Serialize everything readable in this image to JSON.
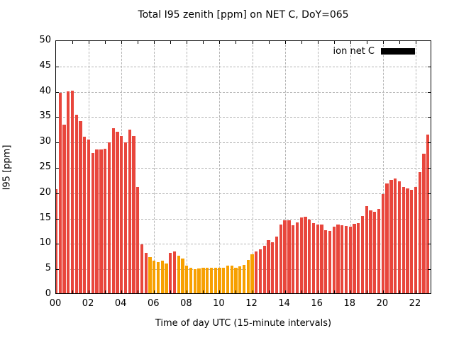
{
  "title": "Total I95 zenith [ppm] on NET C, DoY=065",
  "x_axis": {
    "label": "Time of day UTC (15-minute intervals)",
    "tick_labels": [
      "00",
      "02",
      "04",
      "06",
      "08",
      "10",
      "12",
      "14",
      "16",
      "18",
      "20",
      "22"
    ]
  },
  "y_axis": {
    "label": "I95 [ppm]",
    "tick_labels": [
      "0",
      "5",
      "10",
      "15",
      "20",
      "25",
      "30",
      "35",
      "40",
      "45",
      "50"
    ]
  },
  "legend": {
    "label": "ion net C",
    "swatch_color": "#000000"
  },
  "colors": {
    "red": "#e8463c",
    "orange": "#f7a000",
    "grid": "#b4b4b4",
    "axis": "#000000",
    "background": "#ffffff"
  },
  "chart_data": {
    "type": "bar",
    "title": "Total I95 zenith [ppm] on NET C, DoY=065",
    "xlabel": "Time of day UTC (15-minute intervals)",
    "ylabel": "I95 [ppm]",
    "xlim_hours": [
      0,
      23
    ],
    "ylim": [
      0,
      50
    ],
    "grid": true,
    "legend_position": "top-right-inside",
    "interval_minutes": 15,
    "series_name": "ion net C",
    "times": [
      "00:00",
      "00:15",
      "00:30",
      "00:45",
      "01:00",
      "01:15",
      "01:30",
      "01:45",
      "02:00",
      "02:15",
      "02:30",
      "02:45",
      "03:00",
      "03:15",
      "03:30",
      "03:45",
      "04:00",
      "04:15",
      "04:30",
      "04:45",
      "05:00",
      "05:15",
      "05:30",
      "05:45",
      "06:00",
      "06:15",
      "06:30",
      "06:45",
      "07:00",
      "07:15",
      "07:30",
      "07:45",
      "08:00",
      "08:15",
      "08:30",
      "08:45",
      "09:00",
      "09:15",
      "09:30",
      "09:45",
      "10:00",
      "10:15",
      "10:30",
      "10:45",
      "11:00",
      "11:15",
      "11:30",
      "11:45",
      "12:00",
      "12:15",
      "12:30",
      "12:45",
      "13:00",
      "13:15",
      "13:30",
      "13:45",
      "14:00",
      "14:15",
      "14:30",
      "14:45",
      "15:00",
      "15:15",
      "15:30",
      "15:45",
      "16:00",
      "16:15",
      "16:30",
      "16:45",
      "17:00",
      "17:15",
      "17:30",
      "17:45",
      "18:00",
      "18:15",
      "18:30",
      "18:45",
      "19:00",
      "19:15",
      "19:30",
      "19:45",
      "20:00",
      "20:15",
      "20:30",
      "20:45",
      "21:00",
      "21:15",
      "21:30",
      "21:45",
      "22:00",
      "22:15",
      "22:30",
      "22:45"
    ],
    "values": [
      20.5,
      39.6,
      33.3,
      39.8,
      40.0,
      35.2,
      34.0,
      30.9,
      30.3,
      27.7,
      28.4,
      28.3,
      28.5,
      29.8,
      32.6,
      31.8,
      31.0,
      29.7,
      32.3,
      31.0,
      21.0,
      9.7,
      7.9,
      7.1,
      6.5,
      6.1,
      6.4,
      5.9,
      7.9,
      8.2,
      7.4,
      6.8,
      5.5,
      5.0,
      4.8,
      4.9,
      5.1,
      5.0,
      5.1,
      5.0,
      5.0,
      5.1,
      5.5,
      5.4,
      5.1,
      5.3,
      5.6,
      6.6,
      7.7,
      8.3,
      8.6,
      9.4,
      10.5,
      10.1,
      11.2,
      13.5,
      14.4,
      14.4,
      13.4,
      14.0,
      14.9,
      15.1,
      14.5,
      13.9,
      13.5,
      13.5,
      12.4,
      12.3,
      13.2,
      13.5,
      13.4,
      13.3,
      13.1,
      13.7,
      13.8,
      15.2,
      17.2,
      16.4,
      16.1,
      16.6,
      19.5,
      21.6,
      22.3,
      22.6,
      22.1,
      21.0,
      20.7,
      20.4,
      21.0,
      23.9,
      27.5,
      31.3
    ],
    "bar_colors": [
      "red",
      "red",
      "red",
      "red",
      "red",
      "red",
      "red",
      "red",
      "red",
      "red",
      "red",
      "red",
      "red",
      "red",
      "red",
      "red",
      "red",
      "red",
      "red",
      "red",
      "red",
      "red",
      "red",
      "orange",
      "orange",
      "orange",
      "orange",
      "orange",
      "red",
      "red",
      "orange",
      "orange",
      "orange",
      "orange",
      "orange",
      "orange",
      "orange",
      "orange",
      "orange",
      "orange",
      "orange",
      "orange",
      "orange",
      "orange",
      "orange",
      "orange",
      "orange",
      "orange",
      "orange",
      "red",
      "red",
      "red",
      "red",
      "red",
      "red",
      "red",
      "red",
      "red",
      "red",
      "red",
      "red",
      "red",
      "red",
      "red",
      "red",
      "red",
      "red",
      "red",
      "red",
      "red",
      "red",
      "red",
      "red",
      "red",
      "red",
      "red",
      "red",
      "red",
      "red",
      "red",
      "red",
      "red",
      "red",
      "red",
      "red",
      "red",
      "red",
      "red",
      "red",
      "red",
      "red",
      "red"
    ]
  }
}
